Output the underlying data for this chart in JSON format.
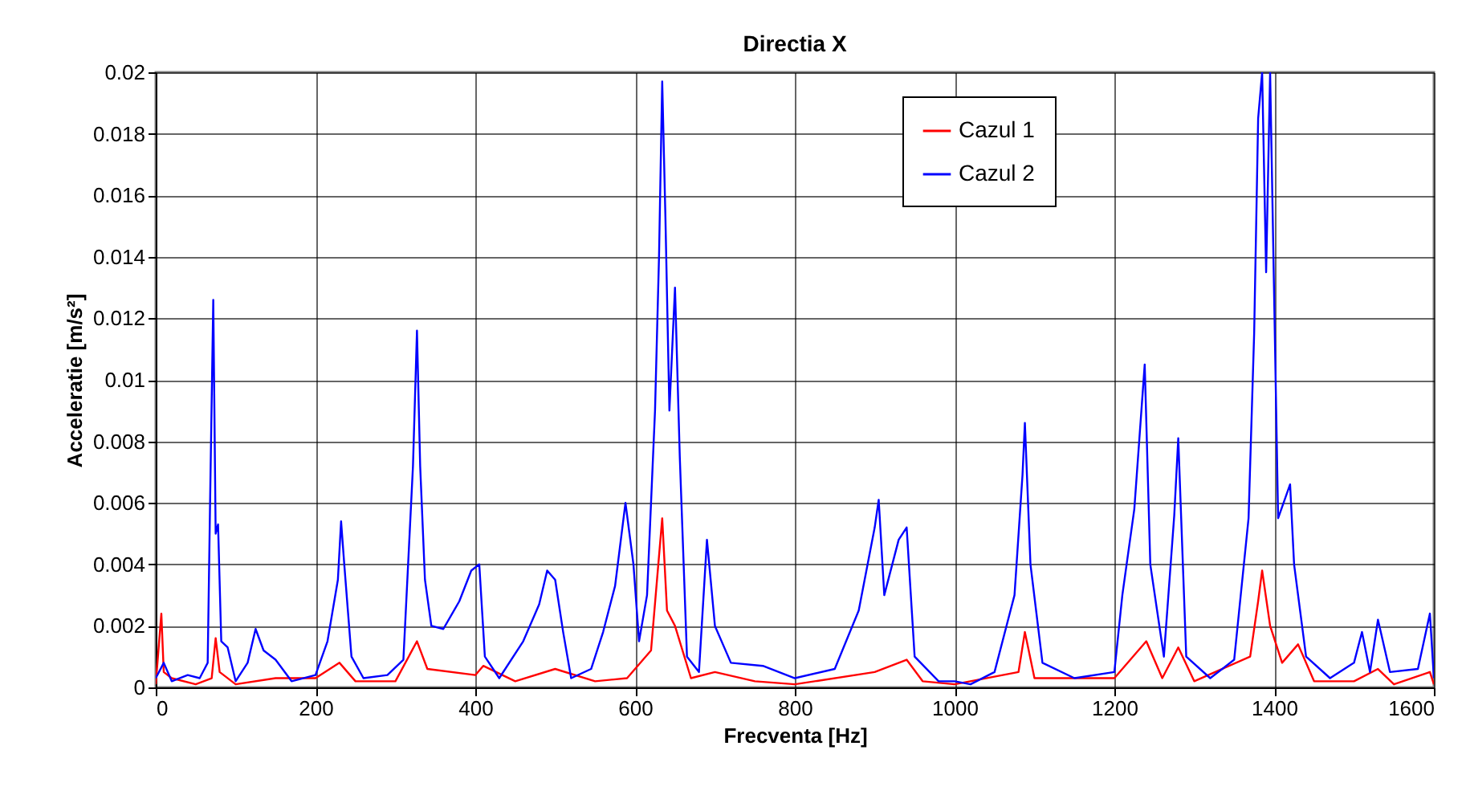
{
  "chart_data": {
    "type": "line",
    "title": "Directia X",
    "xlabel": "Frecventa [Hz]",
    "ylabel": "Acceleratie [m/s²]",
    "xlim": [
      0,
      1600
    ],
    "xticks": [
      0,
      200,
      400,
      600,
      800,
      1000,
      1200,
      1400,
      1600
    ],
    "ylim": [
      0,
      0.02
    ],
    "yticks": [
      0,
      0.002,
      0.004,
      0.006,
      0.008,
      0.01,
      0.012,
      0.014,
      0.016,
      0.018,
      0.02
    ],
    "grid": true,
    "legend": "top right",
    "marker": "none",
    "line_style": "solid",
    "series": [
      {
        "name": "Cazul 1",
        "color": "#ff0000",
        "x": [
          0,
          7,
          10,
          20,
          50,
          70,
          75,
          80,
          100,
          150,
          200,
          230,
          250,
          300,
          327,
          340,
          400,
          410,
          450,
          500,
          550,
          590,
          620,
          634,
          640,
          650,
          670,
          700,
          750,
          800,
          900,
          940,
          960,
          1000,
          1080,
          1088,
          1100,
          1200,
          1230,
          1240,
          1260,
          1280,
          1300,
          1370,
          1380,
          1385,
          1395,
          1410,
          1430,
          1450,
          1500,
          1530,
          1550,
          1595,
          1600
        ],
        "values": [
          0.0001,
          0.0024,
          0.0005,
          0.0003,
          0.0001,
          0.0003,
          0.0016,
          0.0005,
          0.0001,
          0.0003,
          0.0003,
          0.0008,
          0.0002,
          0.0002,
          0.0015,
          0.0006,
          0.0004,
          0.0007,
          0.0002,
          0.0006,
          0.0002,
          0.0003,
          0.0012,
          0.0055,
          0.0025,
          0.002,
          0.0003,
          0.0005,
          0.0002,
          0.0001,
          0.0005,
          0.0009,
          0.0002,
          0.0001,
          0.0005,
          0.0018,
          0.0003,
          0.0003,
          0.0012,
          0.0015,
          0.0003,
          0.0013,
          0.0002,
          0.001,
          0.0028,
          0.0038,
          0.002,
          0.0008,
          0.0014,
          0.0002,
          0.0002,
          0.0006,
          0.0001,
          0.0005,
          0.0001
        ]
      },
      {
        "name": "Cazul 2",
        "color": "#0000ff",
        "x": [
          0,
          10,
          20,
          40,
          55,
          65,
          68,
          72,
          75,
          78,
          82,
          90,
          100,
          115,
          125,
          135,
          150,
          170,
          200,
          215,
          228,
          232,
          236,
          245,
          260,
          290,
          310,
          322,
          327,
          331,
          337,
          345,
          360,
          380,
          395,
          405,
          412,
          430,
          460,
          480,
          490,
          500,
          510,
          520,
          545,
          560,
          575,
          588,
          598,
          605,
          615,
          625,
          630,
          634,
          638,
          643,
          650,
          656,
          665,
          680,
          690,
          700,
          720,
          760,
          800,
          850,
          880,
          900,
          905,
          912,
          930,
          940,
          950,
          980,
          1000,
          1020,
          1050,
          1075,
          1085,
          1088,
          1095,
          1110,
          1150,
          1200,
          1210,
          1225,
          1238,
          1245,
          1262,
          1275,
          1280,
          1290,
          1320,
          1350,
          1368,
          1375,
          1380,
          1385,
          1390,
          1395,
          1405,
          1420,
          1425,
          1440,
          1470,
          1500,
          1510,
          1520,
          1530,
          1545,
          1580,
          1595,
          1600
        ],
        "values": [
          0.0003,
          0.0008,
          0.0002,
          0.0004,
          0.0003,
          0.0008,
          0.006,
          0.0126,
          0.005,
          0.0053,
          0.0015,
          0.0013,
          0.0002,
          0.0008,
          0.0019,
          0.0012,
          0.0009,
          0.0002,
          0.0004,
          0.0015,
          0.0035,
          0.0054,
          0.004,
          0.001,
          0.0003,
          0.0004,
          0.0009,
          0.0072,
          0.0116,
          0.0072,
          0.0035,
          0.002,
          0.0019,
          0.0028,
          0.0038,
          0.004,
          0.001,
          0.0003,
          0.0015,
          0.0027,
          0.0038,
          0.0035,
          0.0018,
          0.0003,
          0.0006,
          0.0018,
          0.0033,
          0.006,
          0.004,
          0.0015,
          0.003,
          0.009,
          0.014,
          0.0197,
          0.0153,
          0.009,
          0.013,
          0.0075,
          0.001,
          0.0005,
          0.0048,
          0.002,
          0.0008,
          0.0007,
          0.0003,
          0.0006,
          0.0025,
          0.0052,
          0.0061,
          0.003,
          0.0048,
          0.0052,
          0.001,
          0.0002,
          0.0002,
          0.0001,
          0.0005,
          0.003,
          0.0069,
          0.0086,
          0.004,
          0.0008,
          0.0003,
          0.0005,
          0.003,
          0.0058,
          0.0105,
          0.004,
          0.001,
          0.0056,
          0.0081,
          0.001,
          0.0003,
          0.0009,
          0.0055,
          0.0115,
          0.0185,
          0.02,
          0.0135,
          0.02,
          0.0055,
          0.0066,
          0.004,
          0.001,
          0.0003,
          0.0008,
          0.0018,
          0.0005,
          0.0022,
          0.0005,
          0.0006,
          0.0024,
          0.0003
        ]
      }
    ]
  }
}
